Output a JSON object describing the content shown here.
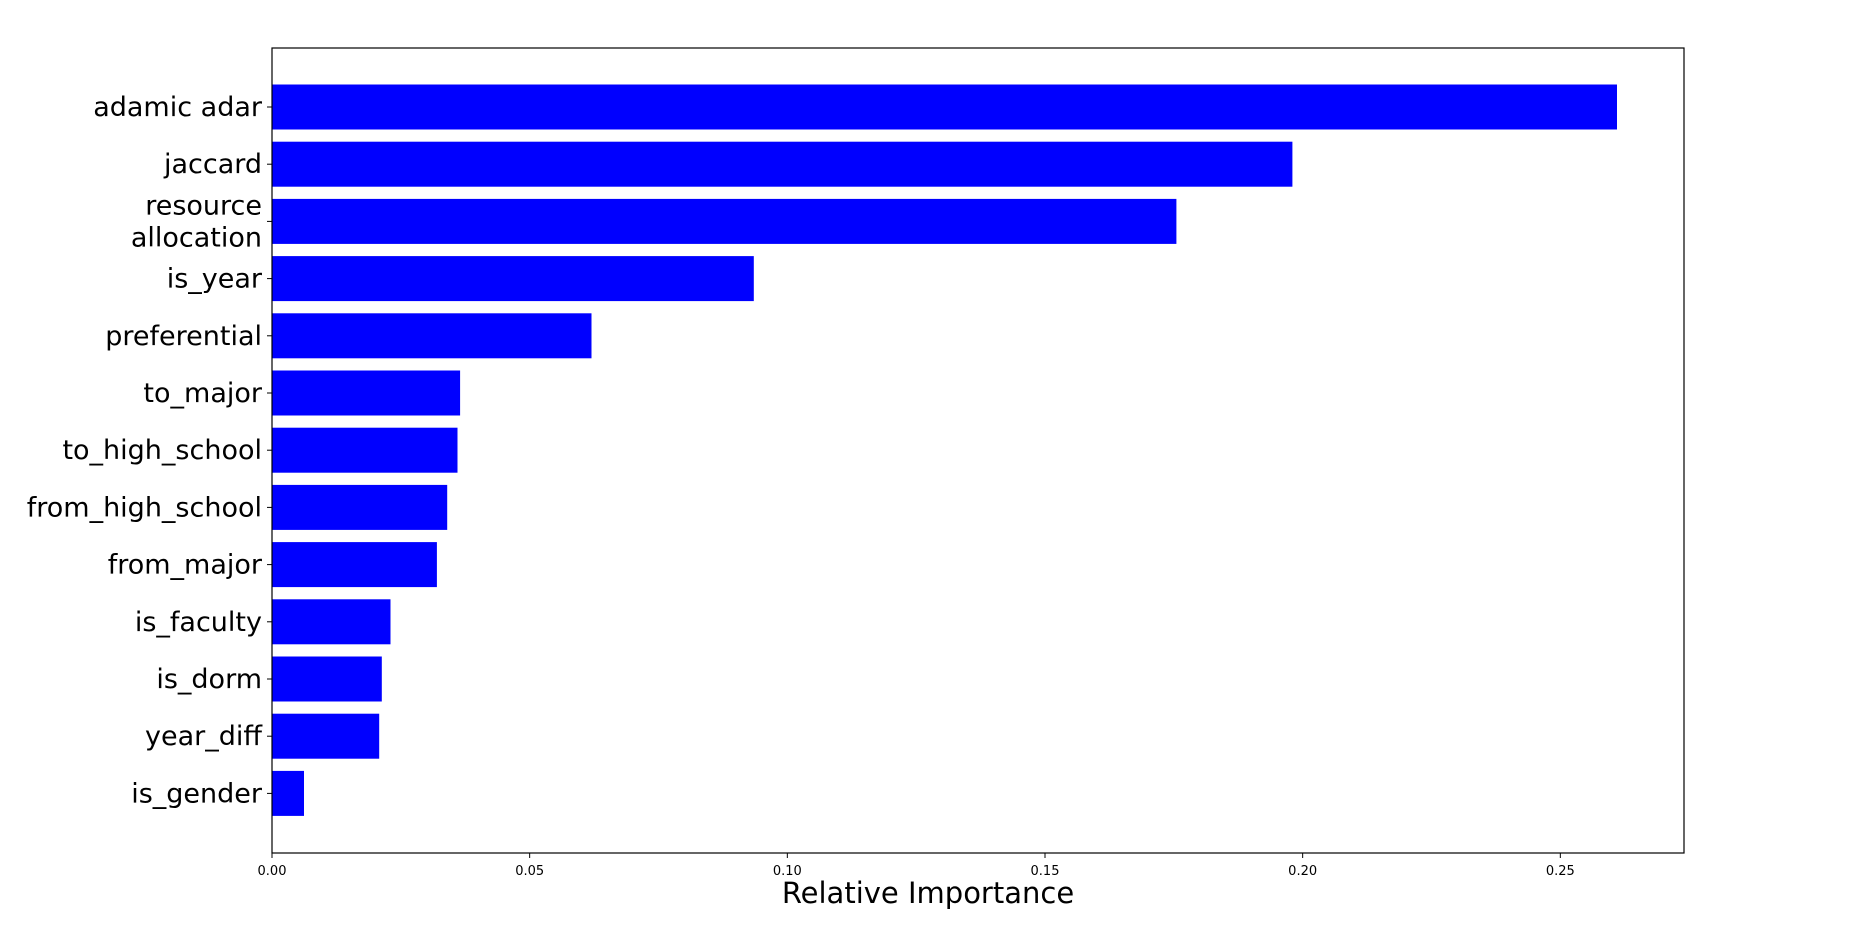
{
  "chart_data": {
    "type": "bar",
    "orientation": "horizontal",
    "categories": [
      [
        "adamic adar"
      ],
      [
        "jaccard"
      ],
      [
        "resource",
        "allocation"
      ],
      [
        "is_year"
      ],
      [
        "preferential"
      ],
      [
        "to_major"
      ],
      [
        "to_high_school"
      ],
      [
        "from_high_school"
      ],
      [
        "from_major"
      ],
      [
        "is_faculty"
      ],
      [
        "is_dorm"
      ],
      [
        "year_diff"
      ],
      [
        "is_gender"
      ]
    ],
    "values": [
      0.261,
      0.198,
      0.1755,
      0.0935,
      0.062,
      0.0365,
      0.036,
      0.034,
      0.032,
      0.023,
      0.0213,
      0.0208,
      0.0062
    ],
    "bar_color": "#0000ff",
    "xlabel": "Relative Importance",
    "ylabel": "",
    "title": "",
    "xlim": [
      0,
      0.274
    ],
    "xticks": [
      0.0,
      0.05,
      0.1,
      0.15,
      0.2,
      0.25
    ],
    "xtick_labels": [
      "0.00",
      "0.05",
      "0.10",
      "0.15",
      "0.20",
      "0.25"
    ],
    "grid": false,
    "legend": "none"
  }
}
